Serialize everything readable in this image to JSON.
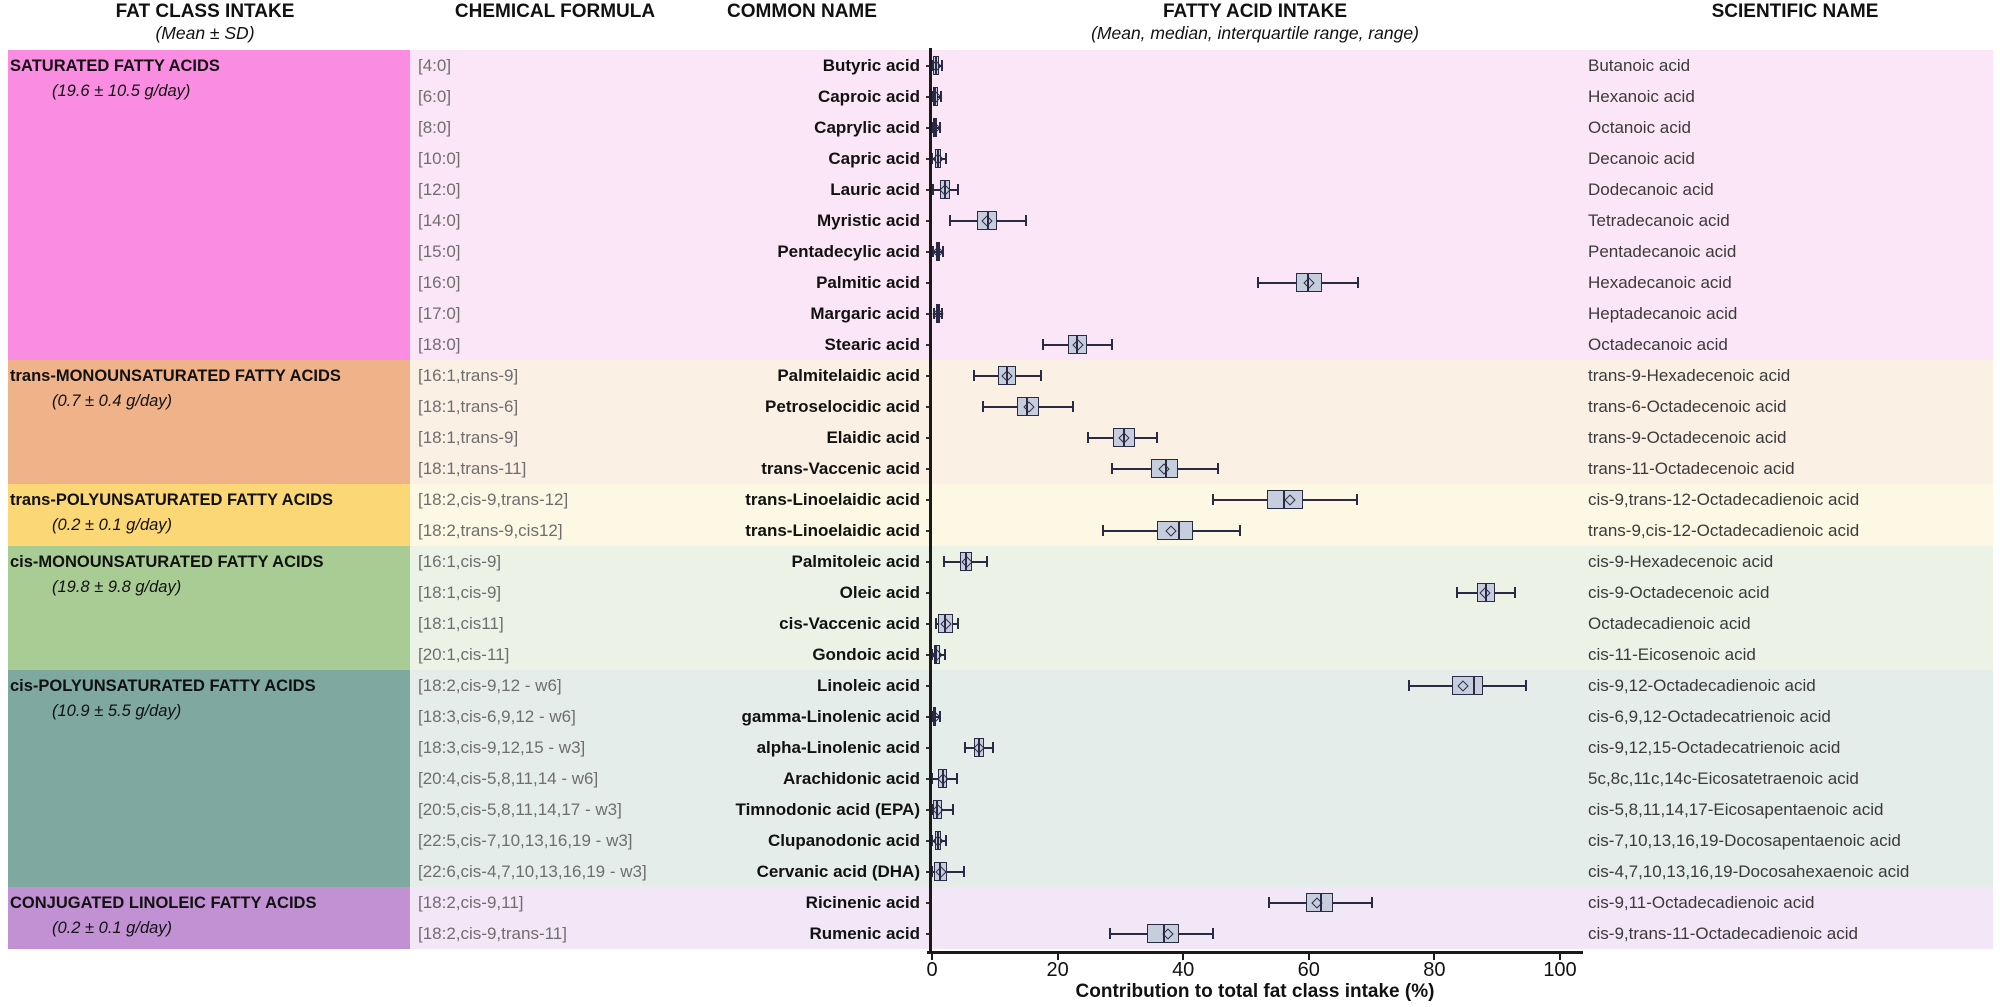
{
  "header": {
    "fat_class_title": "FAT CLASS INTAKE",
    "fat_class_subtitle": "(Mean ± SD)",
    "chemical_formula_title": "CHEMICAL FORMULA",
    "common_name_title": "COMMON NAME",
    "fatty_acid_intake_title": "FATTY ACID INTAKE",
    "fatty_acid_intake_subtitle": "(Mean, median, interquartile range, range)",
    "scientific_name_title": "SCIENTIFIC NAME"
  },
  "axis": {
    "ticks": [
      0,
      20,
      40,
      60,
      80,
      100
    ],
    "xlabel": "Contribution to total fat class intake (%)",
    "min": 0,
    "max": 100
  },
  "chart_data": {
    "type": "box",
    "orientation": "horizontal",
    "title": "FATTY ACID INTAKE",
    "subtitle": "(Mean, median, interquartile range, range)",
    "xlabel": "Contribution to total fat class intake (%)",
    "xlim": [
      0,
      100
    ],
    "grid": false,
    "legend": false,
    "box_fill": "#c6cede",
    "box_border": "#2a2a45",
    "groups": [
      {
        "name": "SATURATED FATTY ACIDS",
        "intake": "(19.6 ± 10.5 g/day)",
        "block_color": "#fa8ce2",
        "band_color": "#fbe6f7",
        "rows": [
          {
            "formula": "[4:0]",
            "common": "Butyric acid",
            "scientific": "Butanoic acid",
            "box": {
              "lo": 0,
              "q1": 0.2,
              "med": 0.6,
              "q3": 1.1,
              "hi": 1.6,
              "mean": 0.7
            }
          },
          {
            "formula": "[6:0]",
            "common": "Caproic acid",
            "scientific": "Hexanoic acid",
            "box": {
              "lo": 0,
              "q1": 0.2,
              "med": 0.5,
              "q3": 0.9,
              "hi": 1.4,
              "mean": 0.6
            }
          },
          {
            "formula": "[8:0]",
            "common": "Caprylic acid",
            "scientific": "Octanoic acid",
            "box": {
              "lo": 0,
              "q1": 0.1,
              "med": 0.4,
              "q3": 0.8,
              "hi": 1.2,
              "mean": 0.5
            }
          },
          {
            "formula": "[10:0]",
            "common": "Capric acid",
            "scientific": "Decanoic acid",
            "box": {
              "lo": 0,
              "q1": 0.4,
              "med": 0.9,
              "q3": 1.5,
              "hi": 2.2,
              "mean": 1.0
            }
          },
          {
            "formula": "[12:0]",
            "common": "Lauric acid",
            "scientific": "Dodecanoic acid",
            "box": {
              "lo": 0.2,
              "q1": 1.2,
              "med": 2.0,
              "q3": 2.9,
              "hi": 4.1,
              "mean": 2.1
            }
          },
          {
            "formula": "[14:0]",
            "common": "Myristic acid",
            "scientific": "Tetradecanoic acid",
            "box": {
              "lo": 2.8,
              "q1": 7.2,
              "med": 8.9,
              "q3": 10.4,
              "hi": 15.0,
              "mean": 8.8
            }
          },
          {
            "formula": "[15:0]",
            "common": "Pentadecylic acid",
            "scientific": "Pentadecanoic acid",
            "box": {
              "lo": 0.2,
              "q1": 0.6,
              "med": 0.9,
              "q3": 1.3,
              "hi": 1.8,
              "mean": 1.0
            }
          },
          {
            "formula": "[16:0]",
            "common": "Palmitic acid",
            "scientific": "Hexadecanoic acid",
            "box": {
              "lo": 51.9,
              "q1": 57.9,
              "med": 59.9,
              "q3": 62.1,
              "hi": 67.8,
              "mean": 60.0
            }
          },
          {
            "formula": "[17:0]",
            "common": "Margaric acid",
            "scientific": "Heptadecanoic acid",
            "box": {
              "lo": 0.3,
              "q1": 0.6,
              "med": 0.9,
              "q3": 1.2,
              "hi": 1.6,
              "mean": 0.9
            }
          },
          {
            "formula": "[18:0]",
            "common": "Stearic acid",
            "scientific": "Octadecanoic acid",
            "box": {
              "lo": 17.7,
              "q1": 21.7,
              "med": 23.1,
              "q3": 24.7,
              "hi": 28.7,
              "mean": 23.2
            }
          }
        ]
      },
      {
        "name": "trans-MONOUNSATURATED FATTY ACIDS",
        "intake": "(0.7 ± 0.4 g/day)",
        "block_color": "#f0b289",
        "band_color": "#faf0e4",
        "rows": [
          {
            "formula": "[16:1,trans-9]",
            "common": "Palmitelaidic acid",
            "scientific": "trans-9-Hexadecenoic acid",
            "box": {
              "lo": 6.7,
              "q1": 10.5,
              "med": 11.9,
              "q3": 13.4,
              "hi": 17.4,
              "mean": 12.0
            }
          },
          {
            "formula": "[18:1,trans-6]",
            "common": "Petroselocidic acid",
            "scientific": "trans-6-Octadecenoic acid",
            "box": {
              "lo": 8.1,
              "q1": 13.5,
              "med": 15.2,
              "q3": 17.0,
              "hi": 22.4,
              "mean": 15.4
            }
          },
          {
            "formula": "[18:1,trans-9]",
            "common": "Elaidic acid",
            "scientific": "trans-9-Octadecenoic acid",
            "box": {
              "lo": 24.8,
              "q1": 28.8,
              "med": 30.6,
              "q3": 32.4,
              "hi": 35.9,
              "mean": 30.5
            }
          },
          {
            "formula": "[18:1,trans-11]",
            "common": "trans-Vaccenic acid",
            "scientific": "trans-11-Octadecenoic acid",
            "box": {
              "lo": 28.6,
              "q1": 34.8,
              "med": 37.2,
              "q3": 39.2,
              "hi": 45.5,
              "mean": 37.0
            }
          }
        ]
      },
      {
        "name": "trans-POLYUNSATURATED FATTY ACIDS",
        "intake": "(0.2 ± 0.1 g/day)",
        "block_color": "#fbd875",
        "band_color": "#fdf8e3",
        "rows": [
          {
            "formula": "[18:2,cis-9,trans-12]",
            "common": "trans-Linoelaidic acid",
            "scientific": "cis-9,trans-12-Octadecadienoic acid",
            "box": {
              "lo": 44.7,
              "q1": 53.3,
              "med": 56.0,
              "q3": 59.0,
              "hi": 67.6,
              "mean": 57.0
            }
          },
          {
            "formula": "[18:2,trans-9,cis12]",
            "common": "trans-Linoelaidic acid",
            "scientific": "trans-9,cis-12-Octadecadienoic acid",
            "box": {
              "lo": 27.2,
              "q1": 35.8,
              "med": 39.4,
              "q3": 41.5,
              "hi": 49.1,
              "mean": 38.0
            }
          }
        ]
      },
      {
        "name": "cis-MONOUNSATURATED FATTY ACIDS",
        "intake": "(19.8 ± 9.8 g/day)",
        "block_color": "#a9cc95",
        "band_color": "#ecf3e6",
        "rows": [
          {
            "formula": "[16:1,cis-9]",
            "common": "Palmitoleic acid",
            "scientific": "cis-9-Hexadecenoic acid",
            "box": {
              "lo": 1.9,
              "q1": 4.5,
              "med": 5.4,
              "q3": 6.4,
              "hi": 8.8,
              "mean": 5.5
            }
          },
          {
            "formula": "[18:1,cis-9]",
            "common": "Oleic acid",
            "scientific": "cis-9-Octadecenoic acid",
            "box": {
              "lo": 83.6,
              "q1": 86.8,
              "med": 88.2,
              "q3": 89.6,
              "hi": 92.8,
              "mean": 88.1
            }
          },
          {
            "formula": "[18:1,cis11]",
            "common": "cis-Vaccenic acid",
            "scientific": "Octadecadienoic acid",
            "box": {
              "lo": 0.6,
              "q1": 1.0,
              "med": 2.0,
              "q3": 3.3,
              "hi": 4.2,
              "mean": 2.2
            }
          },
          {
            "formula": "[20:1,cis-11]",
            "common": "Gondoic acid",
            "scientific": "cis-11-Eicosenoic acid",
            "box": {
              "lo": 0,
              "q1": 0.3,
              "med": 0.7,
              "q3": 1.2,
              "hi": 2.0,
              "mean": 0.8
            }
          }
        ]
      },
      {
        "name": "cis-POLYUNSATURATED FATTY ACIDS",
        "intake": "(10.9 ± 5.5 g/day)",
        "block_color": "#7ea8a0",
        "band_color": "#e4edea",
        "rows": [
          {
            "formula": "[18:2,cis-9,12 - w6]",
            "common": "Linoleic acid",
            "scientific": "cis-9,12-Octadecadienoic acid",
            "box": {
              "lo": 76.0,
              "q1": 82.8,
              "med": 86.3,
              "q3": 87.7,
              "hi": 94.6,
              "mean": 84.6
            }
          },
          {
            "formula": "[18:3,cis-6,9,12 - w6]",
            "common": "gamma-Linolenic acid",
            "scientific": "cis-6,9,12-Octadecatrienoic acid",
            "box": {
              "lo": 0,
              "q1": 0.1,
              "med": 0.4,
              "q3": 0.7,
              "hi": 1.2,
              "mean": 0.4
            }
          },
          {
            "formula": "[18:3,cis-9,12,15 - w3]",
            "common": "alpha-Linolenic acid",
            "scientific": "cis-9,12,15-Octadecatrienoic acid",
            "box": {
              "lo": 5.2,
              "q1": 6.7,
              "med": 7.5,
              "q3": 8.3,
              "hi": 9.7,
              "mean": 7.5
            }
          },
          {
            "formula": "[20:4,cis-5,8,11,14 - w6]",
            "common": "Arachidonic acid",
            "scientific": "5c,8c,11c,14c-Eicosatetraenoic acid",
            "box": {
              "lo": 0,
              "q1": 1.0,
              "med": 1.7,
              "q3": 2.4,
              "hi": 4.0,
              "mean": 1.7
            }
          },
          {
            "formula": "[20:5,cis-5,8,11,14,17 - w3]",
            "common": "Timnodonic acid (EPA)",
            "scientific": "cis-5,8,11,14,17-Eicosapentaenoic acid",
            "box": {
              "lo": 0,
              "q1": 0.2,
              "med": 0.8,
              "q3": 1.6,
              "hi": 3.3,
              "mean": 1.0
            }
          },
          {
            "formula": "[22:5,cis-7,10,13,16,19 - w3]",
            "common": "Clupanodonic acid",
            "scientific": "cis-7,10,13,16,19-Docosapentaenoic acid",
            "box": {
              "lo": 0,
              "q1": 0.4,
              "med": 0.9,
              "q3": 1.4,
              "hi": 2.2,
              "mean": 1.0
            }
          },
          {
            "formula": "[22:6,cis-4,7,10,13,16,19 - w3]",
            "common": "Cervanic acid (DHA)",
            "scientific": "cis-4,7,10,13,16,19-Docosahexaenoic acid",
            "box": {
              "lo": 0,
              "q1": 0.3,
              "med": 1.3,
              "q3": 2.4,
              "hi": 5.1,
              "mean": 1.5
            }
          }
        ]
      },
      {
        "name": "CONJUGATED LINOLEIC FATTY ACIDS",
        "intake": "(0.2 ± 0.1 g/day)",
        "block_color": "#c191d3",
        "band_color": "#f1e7f6",
        "rows": [
          {
            "formula": "[18:2,cis-9,11]",
            "common": "Ricinenic acid",
            "scientific": "cis-9,11-Octadecadienoic acid",
            "box": {
              "lo": 53.6,
              "q1": 59.6,
              "med": 62.0,
              "q3": 63.9,
              "hi": 70.1,
              "mean": 61.3
            }
          },
          {
            "formula": "[18:2,cis-9,trans-11]",
            "common": "Rumenic acid",
            "scientific": "cis-9,trans-11-Octadecadienoic acid",
            "box": {
              "lo": 28.3,
              "q1": 34.3,
              "med": 37.0,
              "q3": 39.4,
              "hi": 44.7,
              "mean": 37.6
            }
          }
        ]
      }
    ]
  }
}
